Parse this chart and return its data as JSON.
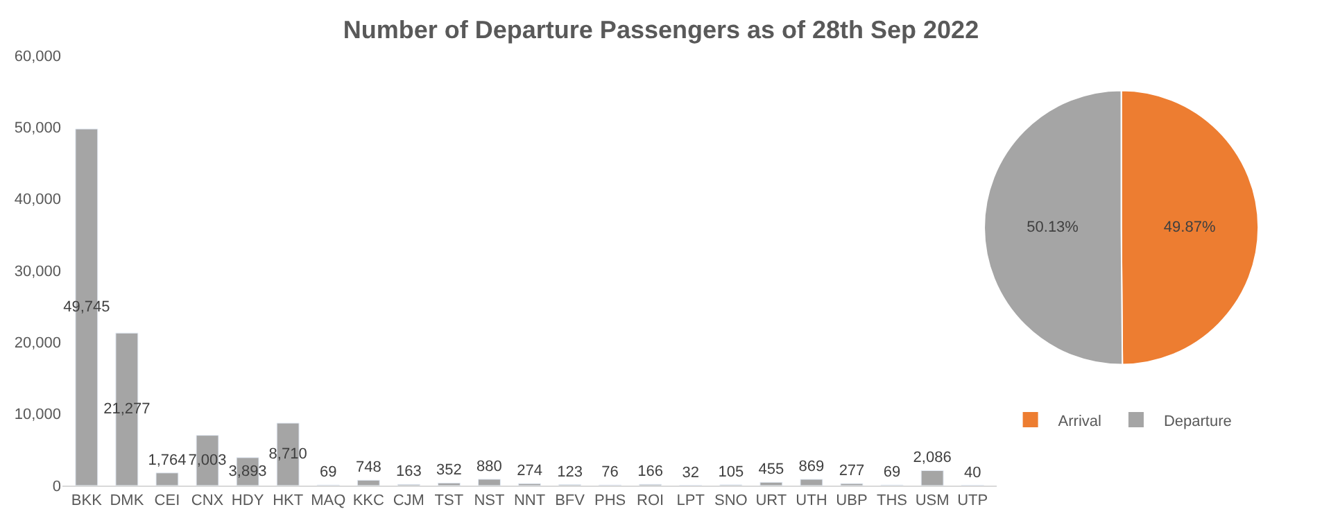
{
  "chart_data": [
    {
      "type": "bar",
      "title": "Number of Departure Passengers as of 28th Sep 2022",
      "categories": [
        "BKK",
        "DMK",
        "CEI",
        "CNX",
        "HDY",
        "HKT",
        "MAQ",
        "KKC",
        "CJM",
        "TST",
        "NST",
        "NNT",
        "BFV",
        "PHS",
        "ROI",
        "LPT",
        "SNO",
        "URT",
        "UTH",
        "UBP",
        "THS",
        "USM",
        "UTP"
      ],
      "values": [
        49745,
        21277,
        1764,
        7003,
        3893,
        8710,
        69,
        748,
        163,
        352,
        880,
        274,
        123,
        76,
        166,
        32,
        105,
        455,
        869,
        277,
        69,
        2086,
        40
      ],
      "color": "#a5a5a5",
      "ylim": [
        0,
        60000
      ],
      "yticks": [
        {
          "value": 0,
          "label": "0"
        },
        {
          "value": 10000,
          "label": "10,000"
        },
        {
          "value": 20000,
          "label": "20,000"
        },
        {
          "value": 30000,
          "label": "30,000"
        },
        {
          "value": 40000,
          "label": "40,000"
        },
        {
          "value": 50000,
          "label": "50,000"
        },
        {
          "value": 60000,
          "label": "60,000"
        }
      ],
      "value_labels": [
        "49,745",
        "21,277",
        "1,764",
        "7,003",
        "3,893",
        "8,710",
        "69",
        "748",
        "163",
        "352",
        "880",
        "274",
        "123",
        "76",
        "166",
        "32",
        "105",
        "455",
        "869",
        "277",
        "69",
        "2,086",
        "40"
      ]
    },
    {
      "type": "pie",
      "categories": [
        "Arrival",
        "Departure"
      ],
      "values": [
        49.87,
        50.13
      ],
      "colors": [
        "#ed7d31",
        "#a5a5a5"
      ],
      "value_labels": [
        "49.87%",
        "50.13%"
      ],
      "legend": "bottom"
    }
  ]
}
